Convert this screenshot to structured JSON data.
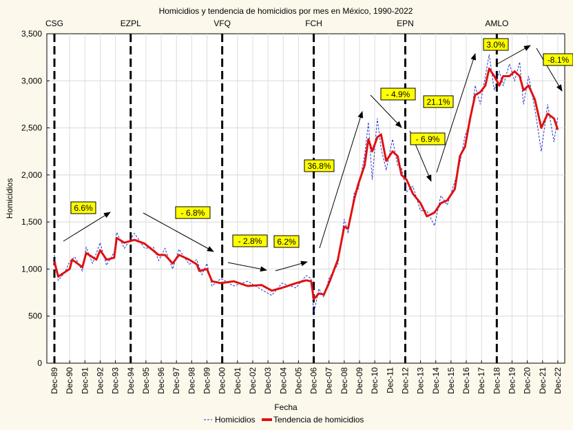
{
  "chart_data": {
    "type": "line",
    "title": "Homicidios y tendencia de homicidios por mes en México, 1990-2022",
    "xlabel": "Fecha",
    "ylabel": "Homicidios",
    "ylim": [
      0,
      3500
    ],
    "yticks": [
      "0",
      "500",
      "1,000",
      "1,500",
      "2,000",
      "2,500",
      "3,000",
      "3,500"
    ],
    "ytick_values": [
      0,
      500,
      1000,
      1500,
      2000,
      2500,
      3000,
      3500
    ],
    "xticks": [
      "Dec-89",
      "Dec-90",
      "Dec-91",
      "Dec-92",
      "Dec-93",
      "Dec-94",
      "Dec-95",
      "Dec-96",
      "Dec-97",
      "Dec-98",
      "Dec-99",
      "Dec-00",
      "Dec-01",
      "Dec-02",
      "Dec-03",
      "Dec-04",
      "Dec-05",
      "Dec-06",
      "Dec-07",
      "Dec-08",
      "Dec-09",
      "Dec-10",
      "Dec-11",
      "Dec-12",
      "Dec-13",
      "Dec-14",
      "Dec-15",
      "Dec-16",
      "Dec-17",
      "Dec-18",
      "Dec-19",
      "Dec-20",
      "Dec-21",
      "Dec-22"
    ],
    "grid": true,
    "legend_position": "bottom",
    "legend": [
      "Homicidios",
      "Tendencia de homicidios"
    ],
    "colors": {
      "homicidios": "#2233cc",
      "tendencia": "#e01010",
      "period_lines": "#000000",
      "annotation_bg": "#ffff00"
    },
    "periods": [
      {
        "label": "CSG",
        "date": "1989-12"
      },
      {
        "label": "EZPL",
        "date": "1994-12"
      },
      {
        "label": "VFQ",
        "date": "2000-12"
      },
      {
        "label": "FCH",
        "date": "2006-12"
      },
      {
        "label": "EPN",
        "date": "2012-12"
      },
      {
        "label": "AMLO",
        "date": "2018-12"
      }
    ],
    "annotations": [
      "6.6%",
      "- 6.8%",
      "- 2.8%",
      "6.2%",
      "36.8%",
      "- 4.9%",
      "21.1%",
      "- 6.9%",
      "3.0%",
      "-8.1%"
    ],
    "series": [
      {
        "name": "Tendencia de homicidios",
        "points": [
          [
            "1989-12",
            1080
          ],
          [
            "1990-03",
            920
          ],
          [
            "1990-12",
            1000
          ],
          [
            "1991-02",
            1100
          ],
          [
            "1991-10",
            1020
          ],
          [
            "1992-01",
            1170
          ],
          [
            "1992-09",
            1100
          ],
          [
            "1992-12",
            1200
          ],
          [
            "1993-05",
            1100
          ],
          [
            "1993-11",
            1120
          ],
          [
            "1994-01",
            1330
          ],
          [
            "1994-07",
            1280
          ],
          [
            "1995-03",
            1310
          ],
          [
            "1995-11",
            1270
          ],
          [
            "1996-10",
            1150
          ],
          [
            "1997-03",
            1150
          ],
          [
            "1997-09",
            1060
          ],
          [
            "1998-02",
            1150
          ],
          [
            "1998-10",
            1100
          ],
          [
            "1999-04",
            1050
          ],
          [
            "1999-06",
            980
          ],
          [
            "1999-12",
            1000
          ],
          [
            "2000-04",
            870
          ],
          [
            "2000-11",
            850
          ],
          [
            "2001-09",
            870
          ],
          [
            "2002-08",
            820
          ],
          [
            "2003-07",
            830
          ],
          [
            "2004-03",
            770
          ],
          [
            "2004-11",
            800
          ],
          [
            "2005-10",
            850
          ],
          [
            "2006-06",
            880
          ],
          [
            "2006-10",
            870
          ],
          [
            "2006-12",
            680
          ],
          [
            "2007-04",
            740
          ],
          [
            "2007-08",
            730
          ],
          [
            "2007-12",
            850
          ],
          [
            "2008-07",
            1100
          ],
          [
            "2008-12",
            1450
          ],
          [
            "2009-03",
            1430
          ],
          [
            "2009-08",
            1750
          ],
          [
            "2009-11",
            1900
          ],
          [
            "2010-04",
            2100
          ],
          [
            "2010-07",
            2380
          ],
          [
            "2010-10",
            2250
          ],
          [
            "2011-02",
            2400
          ],
          [
            "2011-05",
            2430
          ],
          [
            "2011-09",
            2150
          ],
          [
            "2012-02",
            2250
          ],
          [
            "2012-06",
            2200
          ],
          [
            "2012-09",
            2000
          ],
          [
            "2013-01",
            1950
          ],
          [
            "2013-06",
            1800
          ],
          [
            "2013-12",
            1700
          ],
          [
            "2014-05",
            1560
          ],
          [
            "2014-11",
            1600
          ],
          [
            "2015-04",
            1700
          ],
          [
            "2015-09",
            1730
          ],
          [
            "2016-03",
            1850
          ],
          [
            "2016-07",
            2200
          ],
          [
            "2016-11",
            2300
          ],
          [
            "2017-03",
            2600
          ],
          [
            "2017-07",
            2850
          ],
          [
            "2017-11",
            2880
          ],
          [
            "2018-03",
            2950
          ],
          [
            "2018-06",
            3130
          ],
          [
            "2018-10",
            3050
          ],
          [
            "2019-02",
            2950
          ],
          [
            "2019-05",
            3050
          ],
          [
            "2019-10",
            3050
          ],
          [
            "2020-02",
            3100
          ],
          [
            "2020-06",
            3050
          ],
          [
            "2020-09",
            2900
          ],
          [
            "2021-01",
            2950
          ],
          [
            "2021-06",
            2800
          ],
          [
            "2021-11",
            2500
          ],
          [
            "2022-04",
            2650
          ],
          [
            "2022-09",
            2600
          ],
          [
            "2022-12",
            2480
          ]
        ]
      },
      {
        "name": "Homicidios",
        "points": [
          [
            "1989-12",
            1150
          ],
          [
            "1990-03",
            880
          ],
          [
            "1990-08",
            960
          ],
          [
            "1990-12",
            1080
          ],
          [
            "1991-04",
            1130
          ],
          [
            "1991-10",
            980
          ],
          [
            "1992-01",
            1230
          ],
          [
            "1992-06",
            1060
          ],
          [
            "1992-12",
            1280
          ],
          [
            "1993-05",
            1040
          ],
          [
            "1993-11",
            1180
          ],
          [
            "1994-01",
            1390
          ],
          [
            "1994-07",
            1220
          ],
          [
            "1995-03",
            1380
          ],
          [
            "1995-11",
            1220
          ],
          [
            "1996-06",
            1230
          ],
          [
            "1996-10",
            1090
          ],
          [
            "1997-03",
            1220
          ],
          [
            "1997-09",
            1000
          ],
          [
            "1998-02",
            1210
          ],
          [
            "1998-10",
            1050
          ],
          [
            "1999-04",
            1100
          ],
          [
            "1999-08",
            940
          ],
          [
            "1999-12",
            1060
          ],
          [
            "2000-04",
            820
          ],
          [
            "2000-11",
            900
          ],
          [
            "2001-09",
            820
          ],
          [
            "2002-08",
            870
          ],
          [
            "2003-07",
            780
          ],
          [
            "2004-03",
            720
          ],
          [
            "2004-11",
            850
          ],
          [
            "2005-10",
            800
          ],
          [
            "2006-06",
            930
          ],
          [
            "2006-10",
            900
          ],
          [
            "2006-12",
            520
          ],
          [
            "2007-04",
            790
          ],
          [
            "2007-08",
            700
          ],
          [
            "2007-12",
            900
          ],
          [
            "2008-07",
            1050
          ],
          [
            "2008-12",
            1530
          ],
          [
            "2009-03",
            1380
          ],
          [
            "2009-08",
            1820
          ],
          [
            "2009-11",
            1850
          ],
          [
            "2010-04",
            2200
          ],
          [
            "2010-07",
            2560
          ],
          [
            "2010-10",
            1950
          ],
          [
            "2011-02",
            2600
          ],
          [
            "2011-05",
            2280
          ],
          [
            "2011-09",
            2050
          ],
          [
            "2012-02",
            2380
          ],
          [
            "2012-06",
            2100
          ],
          [
            "2012-09",
            2080
          ],
          [
            "2013-01",
            1820
          ],
          [
            "2013-06",
            1880
          ],
          [
            "2013-12",
            1620
          ],
          [
            "2014-05",
            1620
          ],
          [
            "2014-11",
            1460
          ],
          [
            "2015-04",
            1780
          ],
          [
            "2015-09",
            1680
          ],
          [
            "2016-03",
            1930
          ],
          [
            "2016-07",
            2130
          ],
          [
            "2016-11",
            2420
          ],
          [
            "2017-03",
            2550
          ],
          [
            "2017-07",
            2950
          ],
          [
            "2017-11",
            2750
          ],
          [
            "2018-03",
            3050
          ],
          [
            "2018-06",
            3280
          ],
          [
            "2018-10",
            2900
          ],
          [
            "2019-02",
            3100
          ],
          [
            "2019-05",
            2950
          ],
          [
            "2019-10",
            3180
          ],
          [
            "2020-02",
            3000
          ],
          [
            "2020-06",
            3200
          ],
          [
            "2020-09",
            2750
          ],
          [
            "2021-01",
            3050
          ],
          [
            "2021-06",
            2700
          ],
          [
            "2021-11",
            2250
          ],
          [
            "2022-04",
            2750
          ],
          [
            "2022-09",
            2350
          ],
          [
            "2022-12",
            2620
          ]
        ]
      }
    ]
  }
}
